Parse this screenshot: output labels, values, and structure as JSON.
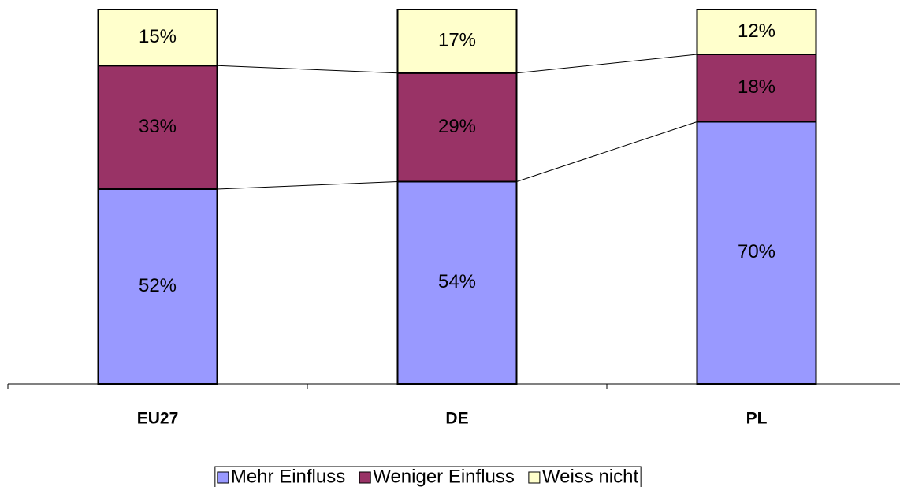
{
  "chart_data": {
    "type": "stacked_bar",
    "categories": [
      "EU27",
      "DE",
      "PL"
    ],
    "series": [
      {
        "name": "Mehr Einfluss",
        "color": "#9999ff",
        "values": [
          52,
          54,
          70
        ],
        "value_labels": [
          "52%",
          "54%",
          "70%"
        ]
      },
      {
        "name": "Weniger Einfluss",
        "color": "#993366",
        "values": [
          33,
          29,
          18
        ],
        "value_labels": [
          "33%",
          "29%",
          "18%"
        ]
      },
      {
        "name": "Weiss nicht",
        "color": "#ffffcc",
        "values": [
          15,
          17,
          12
        ],
        "value_labels": [
          "15%",
          "17%",
          "12%"
        ]
      }
    ],
    "ylim": [
      0,
      100
    ],
    "legend": "bottom"
  }
}
